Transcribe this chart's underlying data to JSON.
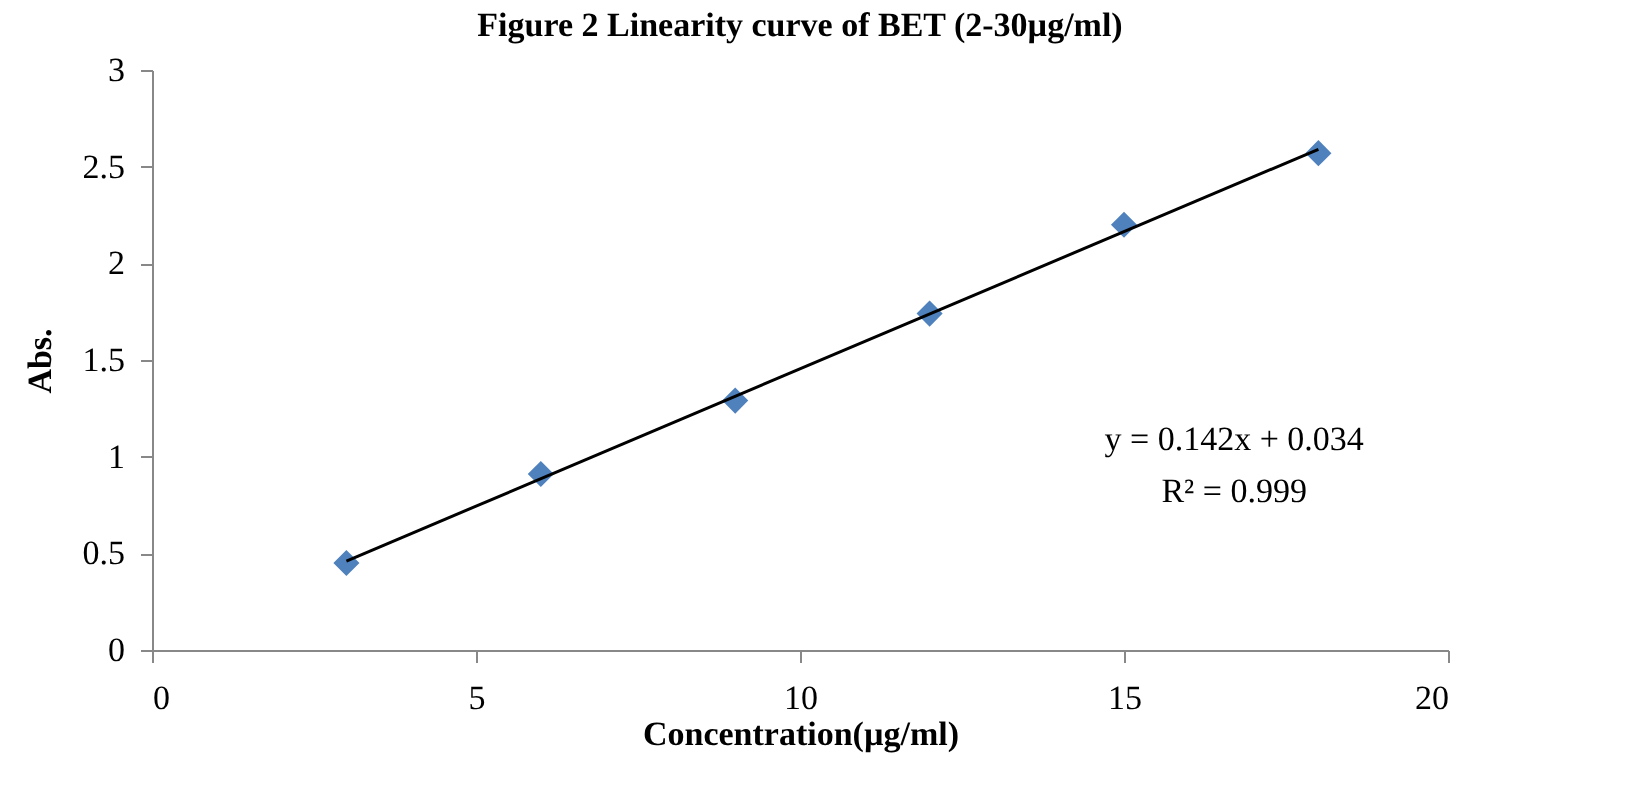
{
  "chart_data": {
    "type": "scatter",
    "title": "Figure 2 Linearity curve of BET (2-30µg/ml)",
    "xlabel": "Concentration(µg/ml)",
    "ylabel": "Abs.",
    "x": [
      3,
      6,
      9,
      12,
      15,
      18
    ],
    "series": [
      {
        "color": "#4f81bd",
        "marker": "diamond",
        "values": [
          0.45,
          0.91,
          1.29,
          1.74,
          2.2,
          2.57
        ]
      },
      {
        "type": "line",
        "color": "#000000",
        "marker": "none",
        "line_style": "solid",
        "x": [
          3,
          18
        ],
        "values": [
          0.46,
          2.59
        ]
      }
    ],
    "annotations": [
      "y = 0.142x + 0.034",
      "R² = 0.999"
    ],
    "xlim": [
      0,
      20
    ],
    "xticks": [
      0,
      5,
      10,
      15,
      20
    ],
    "ylim": [
      0,
      3
    ],
    "yticks": [
      0,
      0.5,
      1,
      1.5,
      2,
      2.5,
      3
    ],
    "grid": false
  }
}
